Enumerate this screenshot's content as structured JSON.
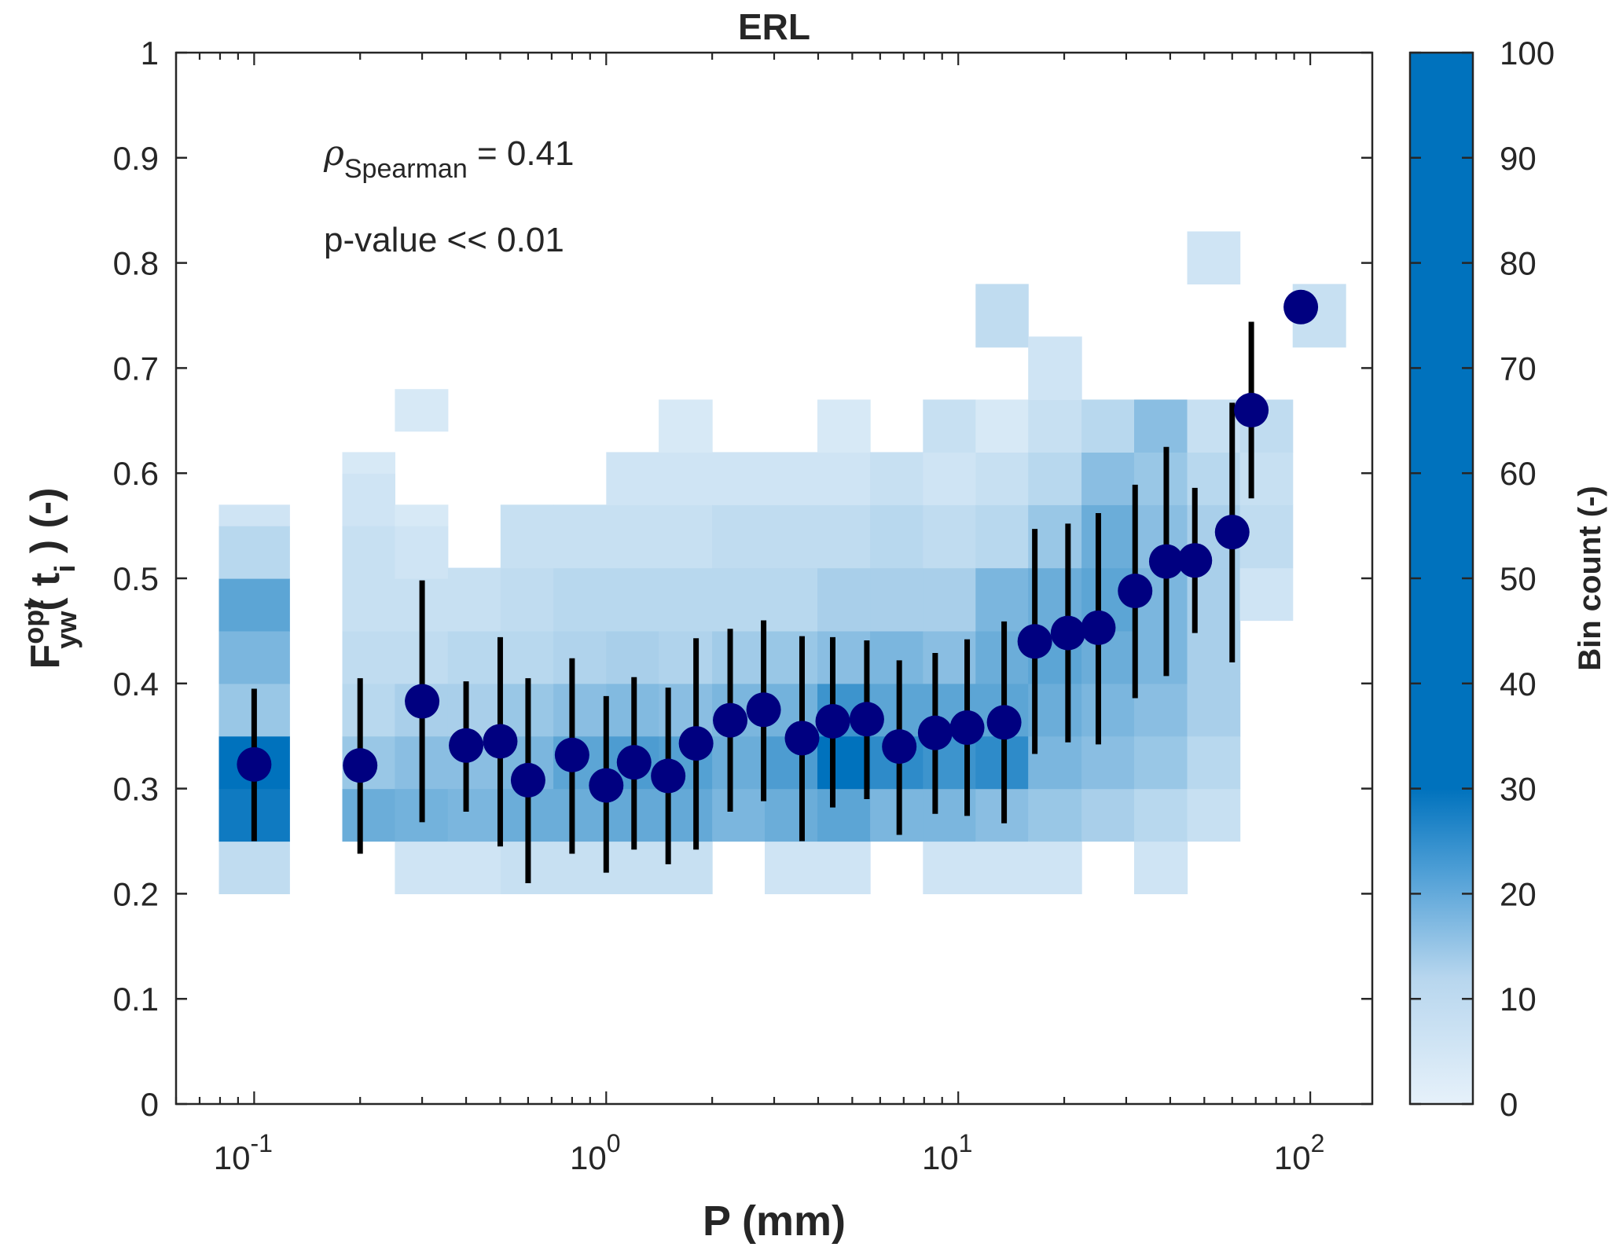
{
  "chart_data": {
    "type": "heatmap",
    "title": "ERL",
    "xlabel": "P (mm)",
    "ylabel": {
      "base": "F",
      "sup": "opt",
      "sub": "yw",
      "args": "( t",
      "arg_sub": "i",
      "tail": " ) (-)"
    },
    "x_scale": "log",
    "xlim": [
      0.06,
      150
    ],
    "ylim": [
      0,
      1
    ],
    "x_ticks": [
      {
        "value": 0.1,
        "base": "10",
        "exp": "-1"
      },
      {
        "value": 1,
        "base": "10",
        "exp": "0"
      },
      {
        "value": 10,
        "base": "10",
        "exp": "1"
      },
      {
        "value": 100,
        "base": "10",
        "exp": "2"
      }
    ],
    "y_ticks": [
      0,
      0.1,
      0.2,
      0.3,
      0.4,
      0.5,
      0.6,
      0.7,
      0.8,
      0.9,
      1
    ],
    "y_tick_labels": [
      "0",
      "0.1",
      "0.2",
      "0.3",
      "0.4",
      "0.5",
      "0.6",
      "0.7",
      "0.8",
      "0.9",
      "1"
    ],
    "grid": false,
    "annotations": {
      "rho_symbol": "ρ",
      "rho_sub": "Spearman",
      "rho_value": " = 0.41",
      "pvalue": "p-value << 0.01"
    },
    "colorbar": {
      "label": "Bin count (-)",
      "min": 0,
      "max": 100,
      "ticks": [
        0,
        10,
        20,
        30,
        40,
        50,
        60,
        70,
        80,
        90,
        100
      ],
      "color_low": "#e6f1fa",
      "color_high": "#0072bd"
    },
    "heatmap_bins": [
      {
        "x0": 0.0794,
        "x1": 0.126,
        "cells": [
          [
            0.2,
            0.25,
            5
          ],
          [
            0.25,
            0.3,
            28
          ],
          [
            0.3,
            0.35,
            30
          ],
          [
            0.35,
            0.4,
            10
          ],
          [
            0.4,
            0.45,
            14
          ],
          [
            0.45,
            0.5,
            18
          ],
          [
            0.5,
            0.55,
            6
          ],
          [
            0.55,
            0.57,
            3
          ]
        ]
      },
      {
        "x0": 0.178,
        "x1": 0.251,
        "cells": [
          [
            0.25,
            0.3,
            16
          ],
          [
            0.3,
            0.35,
            10
          ],
          [
            0.35,
            0.4,
            6
          ],
          [
            0.4,
            0.45,
            5
          ],
          [
            0.45,
            0.5,
            4
          ],
          [
            0.5,
            0.55,
            4
          ],
          [
            0.55,
            0.6,
            3
          ],
          [
            0.6,
            0.62,
            2
          ]
        ]
      },
      {
        "x0": 0.251,
        "x1": 0.355,
        "cells": [
          [
            0.2,
            0.25,
            3
          ],
          [
            0.25,
            0.3,
            15
          ],
          [
            0.3,
            0.35,
            12
          ],
          [
            0.35,
            0.4,
            8
          ],
          [
            0.4,
            0.45,
            5
          ],
          [
            0.45,
            0.5,
            4
          ],
          [
            0.5,
            0.55,
            3
          ],
          [
            0.55,
            0.57,
            2
          ],
          [
            0.64,
            0.68,
            2
          ]
        ]
      },
      {
        "x0": 0.355,
        "x1": 0.501,
        "cells": [
          [
            0.2,
            0.25,
            3
          ],
          [
            0.25,
            0.3,
            14
          ],
          [
            0.3,
            0.35,
            12
          ],
          [
            0.35,
            0.4,
            8
          ],
          [
            0.4,
            0.45,
            6
          ],
          [
            0.45,
            0.51,
            4
          ]
        ]
      },
      {
        "x0": 0.501,
        "x1": 0.708,
        "cells": [
          [
            0.2,
            0.25,
            4
          ],
          [
            0.25,
            0.3,
            16
          ],
          [
            0.3,
            0.35,
            14
          ],
          [
            0.35,
            0.4,
            10
          ],
          [
            0.4,
            0.45,
            6
          ],
          [
            0.45,
            0.51,
            5
          ],
          [
            0.51,
            0.57,
            4
          ]
        ]
      },
      {
        "x0": 0.708,
        "x1": 1.0,
        "cells": [
          [
            0.2,
            0.25,
            4
          ],
          [
            0.25,
            0.3,
            16
          ],
          [
            0.3,
            0.35,
            18
          ],
          [
            0.35,
            0.4,
            12
          ],
          [
            0.4,
            0.45,
            7
          ],
          [
            0.45,
            0.51,
            6
          ],
          [
            0.51,
            0.57,
            4
          ]
        ]
      },
      {
        "x0": 1.0,
        "x1": 1.41,
        "cells": [
          [
            0.2,
            0.25,
            4
          ],
          [
            0.25,
            0.3,
            17
          ],
          [
            0.3,
            0.35,
            20
          ],
          [
            0.35,
            0.4,
            13
          ],
          [
            0.4,
            0.45,
            8
          ],
          [
            0.45,
            0.51,
            6
          ],
          [
            0.51,
            0.57,
            4
          ],
          [
            0.57,
            0.62,
            3
          ]
        ]
      },
      {
        "x0": 1.41,
        "x1": 2.0,
        "cells": [
          [
            0.2,
            0.25,
            4
          ],
          [
            0.25,
            0.3,
            17
          ],
          [
            0.3,
            0.35,
            19
          ],
          [
            0.35,
            0.4,
            12
          ],
          [
            0.4,
            0.45,
            7
          ],
          [
            0.45,
            0.51,
            6
          ],
          [
            0.51,
            0.57,
            4
          ],
          [
            0.57,
            0.62,
            3
          ],
          [
            0.62,
            0.67,
            2
          ]
        ]
      },
      {
        "x0": 2.0,
        "x1": 2.82,
        "cells": [
          [
            0.25,
            0.3,
            14
          ],
          [
            0.3,
            0.35,
            16
          ],
          [
            0.35,
            0.4,
            14
          ],
          [
            0.4,
            0.45,
            9
          ],
          [
            0.45,
            0.51,
            6
          ],
          [
            0.51,
            0.57,
            5
          ],
          [
            0.57,
            0.62,
            3
          ]
        ]
      },
      {
        "x0": 2.82,
        "x1": 3.98,
        "cells": [
          [
            0.2,
            0.25,
            3
          ],
          [
            0.25,
            0.3,
            16
          ],
          [
            0.3,
            0.35,
            20
          ],
          [
            0.35,
            0.4,
            15
          ],
          [
            0.4,
            0.45,
            10
          ],
          [
            0.45,
            0.51,
            6
          ],
          [
            0.51,
            0.57,
            5
          ],
          [
            0.57,
            0.62,
            3
          ]
        ]
      },
      {
        "x0": 3.98,
        "x1": 5.62,
        "cells": [
          [
            0.2,
            0.25,
            3
          ],
          [
            0.25,
            0.3,
            18
          ],
          [
            0.3,
            0.35,
            30
          ],
          [
            0.35,
            0.4,
            22
          ],
          [
            0.4,
            0.45,
            12
          ],
          [
            0.45,
            0.51,
            8
          ],
          [
            0.51,
            0.57,
            5
          ],
          [
            0.57,
            0.62,
            3
          ],
          [
            0.62,
            0.67,
            2
          ]
        ]
      },
      {
        "x0": 5.62,
        "x1": 7.94,
        "cells": [
          [
            0.25,
            0.3,
            14
          ],
          [
            0.3,
            0.35,
            24
          ],
          [
            0.35,
            0.4,
            18
          ],
          [
            0.4,
            0.45,
            14
          ],
          [
            0.45,
            0.51,
            8
          ],
          [
            0.51,
            0.57,
            6
          ],
          [
            0.57,
            0.62,
            4
          ]
        ]
      },
      {
        "x0": 7.94,
        "x1": 11.2,
        "cells": [
          [
            0.2,
            0.25,
            3
          ],
          [
            0.25,
            0.3,
            14
          ],
          [
            0.3,
            0.35,
            22
          ],
          [
            0.35,
            0.4,
            18
          ],
          [
            0.4,
            0.45,
            12
          ],
          [
            0.45,
            0.51,
            8
          ],
          [
            0.51,
            0.57,
            5
          ],
          [
            0.57,
            0.62,
            3
          ],
          [
            0.62,
            0.67,
            4
          ]
        ]
      },
      {
        "x0": 11.2,
        "x1": 15.8,
        "cells": [
          [
            0.2,
            0.25,
            3
          ],
          [
            0.25,
            0.3,
            12
          ],
          [
            0.3,
            0.35,
            24
          ],
          [
            0.35,
            0.4,
            18
          ],
          [
            0.4,
            0.45,
            16
          ],
          [
            0.45,
            0.51,
            14
          ],
          [
            0.51,
            0.57,
            6
          ],
          [
            0.57,
            0.62,
            4
          ],
          [
            0.62,
            0.67,
            2
          ],
          [
            0.72,
            0.78,
            5
          ]
        ]
      },
      {
        "x0": 15.8,
        "x1": 22.4,
        "cells": [
          [
            0.2,
            0.25,
            3
          ],
          [
            0.25,
            0.3,
            10
          ],
          [
            0.3,
            0.35,
            14
          ],
          [
            0.35,
            0.4,
            16
          ],
          [
            0.4,
            0.45,
            18
          ],
          [
            0.45,
            0.51,
            16
          ],
          [
            0.51,
            0.57,
            10
          ],
          [
            0.57,
            0.62,
            6
          ],
          [
            0.62,
            0.67,
            4
          ],
          [
            0.67,
            0.73,
            3
          ]
        ]
      },
      {
        "x0": 22.4,
        "x1": 31.6,
        "cells": [
          [
            0.25,
            0.3,
            8
          ],
          [
            0.3,
            0.35,
            12
          ],
          [
            0.35,
            0.4,
            14
          ],
          [
            0.4,
            0.45,
            16
          ],
          [
            0.45,
            0.51,
            18
          ],
          [
            0.51,
            0.57,
            16
          ],
          [
            0.57,
            0.62,
            12
          ],
          [
            0.62,
            0.67,
            6
          ]
        ]
      },
      {
        "x0": 31.6,
        "x1": 44.7,
        "cells": [
          [
            0.2,
            0.25,
            3
          ],
          [
            0.25,
            0.3,
            6
          ],
          [
            0.3,
            0.35,
            10
          ],
          [
            0.35,
            0.4,
            12
          ],
          [
            0.4,
            0.45,
            14
          ],
          [
            0.45,
            0.51,
            14
          ],
          [
            0.51,
            0.57,
            12
          ],
          [
            0.57,
            0.62,
            10
          ],
          [
            0.62,
            0.67,
            12
          ]
        ]
      },
      {
        "x0": 44.7,
        "x1": 63.1,
        "cells": [
          [
            0.25,
            0.3,
            4
          ],
          [
            0.3,
            0.35,
            6
          ],
          [
            0.35,
            0.4,
            8
          ],
          [
            0.4,
            0.45,
            8
          ],
          [
            0.45,
            0.51,
            8
          ],
          [
            0.51,
            0.57,
            8
          ],
          [
            0.57,
            0.62,
            6
          ],
          [
            0.62,
            0.67,
            4
          ],
          [
            0.78,
            0.83,
            3
          ]
        ]
      },
      {
        "x0": 63.1,
        "x1": 89.1,
        "cells": [
          [
            0.46,
            0.51,
            3
          ],
          [
            0.51,
            0.57,
            5
          ],
          [
            0.57,
            0.62,
            4
          ],
          [
            0.62,
            0.67,
            5
          ]
        ]
      },
      {
        "x0": 89.1,
        "x1": 126,
        "cells": [
          [
            0.72,
            0.78,
            4
          ]
        ]
      }
    ],
    "series": [
      {
        "type": "errorbar",
        "color": "#000080",
        "points": [
          {
            "x": 0.1,
            "y": 0.323,
            "lo": 0.25,
            "hi": 0.395
          },
          {
            "x": 0.2,
            "y": 0.322,
            "lo": 0.238,
            "hi": 0.405
          },
          {
            "x": 0.3,
            "y": 0.383,
            "lo": 0.268,
            "hi": 0.498
          },
          {
            "x": 0.4,
            "y": 0.341,
            "lo": 0.278,
            "hi": 0.402
          },
          {
            "x": 0.5,
            "y": 0.345,
            "lo": 0.245,
            "hi": 0.444
          },
          {
            "x": 0.6,
            "y": 0.308,
            "lo": 0.21,
            "hi": 0.405
          },
          {
            "x": 0.8,
            "y": 0.332,
            "lo": 0.238,
            "hi": 0.424
          },
          {
            "x": 1.0,
            "y": 0.303,
            "lo": 0.22,
            "hi": 0.388
          },
          {
            "x": 1.2,
            "y": 0.325,
            "lo": 0.242,
            "hi": 0.406
          },
          {
            "x": 1.5,
            "y": 0.312,
            "lo": 0.228,
            "hi": 0.396
          },
          {
            "x": 1.8,
            "y": 0.343,
            "lo": 0.242,
            "hi": 0.443
          },
          {
            "x": 2.25,
            "y": 0.365,
            "lo": 0.278,
            "hi": 0.452
          },
          {
            "x": 2.8,
            "y": 0.375,
            "lo": 0.288,
            "hi": 0.46
          },
          {
            "x": 3.6,
            "y": 0.348,
            "lo": 0.25,
            "hi": 0.445
          },
          {
            "x": 4.4,
            "y": 0.364,
            "lo": 0.282,
            "hi": 0.444
          },
          {
            "x": 5.5,
            "y": 0.366,
            "lo": 0.29,
            "hi": 0.441
          },
          {
            "x": 6.8,
            "y": 0.34,
            "lo": 0.256,
            "hi": 0.422
          },
          {
            "x": 8.6,
            "y": 0.353,
            "lo": 0.276,
            "hi": 0.429
          },
          {
            "x": 10.6,
            "y": 0.358,
            "lo": 0.274,
            "hi": 0.442
          },
          {
            "x": 13.5,
            "y": 0.363,
            "lo": 0.267,
            "hi": 0.459
          },
          {
            "x": 16.5,
            "y": 0.44,
            "lo": 0.333,
            "hi": 0.547
          },
          {
            "x": 20.5,
            "y": 0.448,
            "lo": 0.344,
            "hi": 0.552
          },
          {
            "x": 25.0,
            "y": 0.453,
            "lo": 0.342,
            "hi": 0.562
          },
          {
            "x": 31.8,
            "y": 0.488,
            "lo": 0.386,
            "hi": 0.589
          },
          {
            "x": 39.0,
            "y": 0.516,
            "lo": 0.407,
            "hi": 0.625
          },
          {
            "x": 47.0,
            "y": 0.517,
            "lo": 0.448,
            "hi": 0.586
          },
          {
            "x": 60.0,
            "y": 0.544,
            "lo": 0.42,
            "hi": 0.667
          },
          {
            "x": 68.0,
            "y": 0.66,
            "lo": 0.576,
            "hi": 0.744
          },
          {
            "x": 94.0,
            "y": 0.758,
            "lo": null,
            "hi": null
          }
        ]
      }
    ]
  }
}
